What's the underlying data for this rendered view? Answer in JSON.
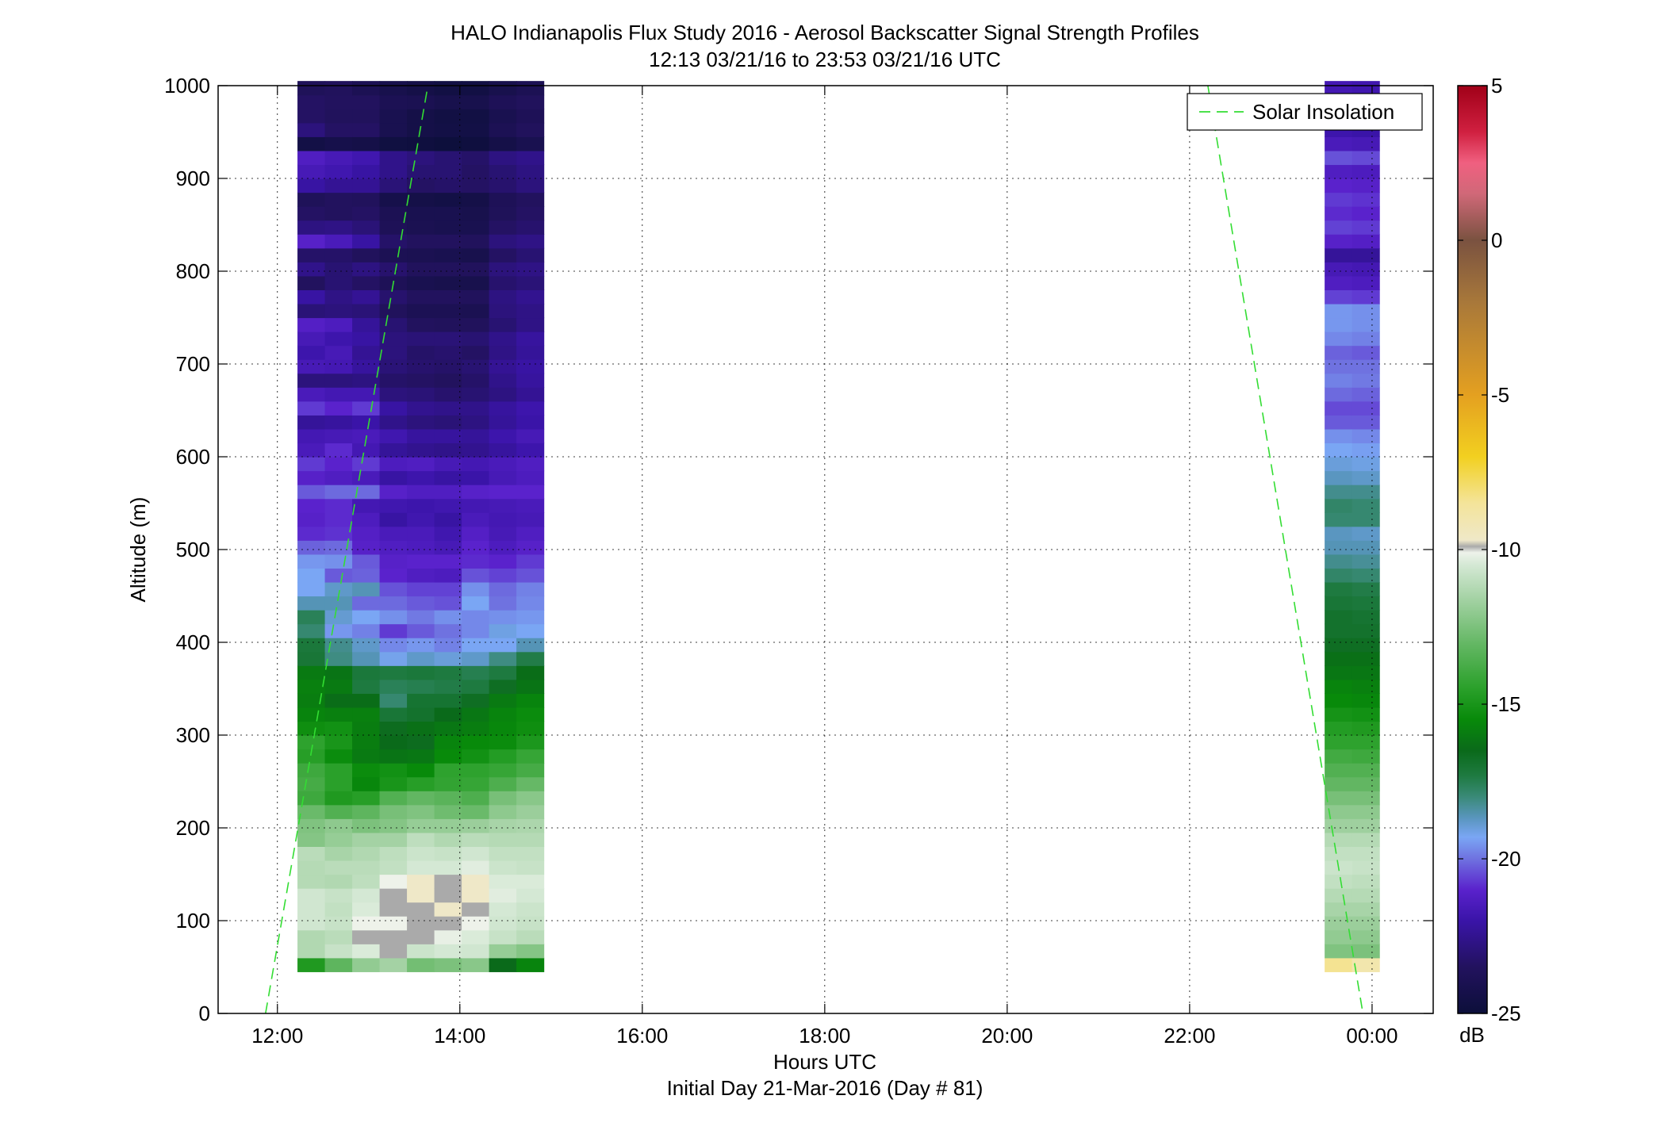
{
  "chart_data": {
    "type": "heatmap",
    "title": "HALO Indianapolis Flux Study 2016 - Aerosol Backscatter Signal Strength Profiles",
    "subtitle": "12:13 03/21/16 to 23:53 03/21/16  UTC",
    "xlabel": "Hours UTC",
    "xlabel2": "Initial Day 21-Mar-2016 (Day # 81)",
    "ylabel": "Altitude (m)",
    "xlim": [
      11.35,
      24.67
    ],
    "ylim": [
      0,
      1000
    ],
    "x_ticks": [
      {
        "value": 12,
        "label": "12:00"
      },
      {
        "value": 14,
        "label": "14:00"
      },
      {
        "value": 16,
        "label": "16:00"
      },
      {
        "value": 18,
        "label": "18:00"
      },
      {
        "value": 20,
        "label": "20:00"
      },
      {
        "value": 22,
        "label": "22:00"
      },
      {
        "value": 24,
        "label": "00:00"
      }
    ],
    "y_ticks": [
      {
        "value": 0,
        "label": "0"
      },
      {
        "value": 100,
        "label": "100"
      },
      {
        "value": 200,
        "label": "200"
      },
      {
        "value": 300,
        "label": "300"
      },
      {
        "value": 400,
        "label": "400"
      },
      {
        "value": 500,
        "label": "500"
      },
      {
        "value": 600,
        "label": "600"
      },
      {
        "value": 700,
        "label": "700"
      },
      {
        "value": 800,
        "label": "800"
      },
      {
        "value": 900,
        "label": "900"
      },
      {
        "value": 1000,
        "label": "1000"
      }
    ],
    "grid": true,
    "legend": {
      "position": "top-right",
      "entries": [
        {
          "label": "Solar Insolation",
          "color": "#33dd33",
          "style": "dashed"
        }
      ]
    },
    "colorbar": {
      "label": "dB",
      "range": [
        -25,
        5
      ],
      "ticks": [
        {
          "value": 5,
          "label": "5"
        },
        {
          "value": 0,
          "label": "0"
        },
        {
          "value": -5,
          "label": "-5"
        },
        {
          "value": -10,
          "label": "-10"
        },
        {
          "value": -15,
          "label": "-15"
        },
        {
          "value": -20,
          "label": "-20"
        },
        {
          "value": -25,
          "label": "-25"
        }
      ],
      "stops": [
        {
          "value": -25,
          "color": "#0c0f3a"
        },
        {
          "value": -23.5,
          "color": "#22125e"
        },
        {
          "value": -22,
          "color": "#3a14a8"
        },
        {
          "value": -21,
          "color": "#5a22cc"
        },
        {
          "value": -20,
          "color": "#6f72e0"
        },
        {
          "value": -19.3,
          "color": "#7aa6f4"
        },
        {
          "value": -18.7,
          "color": "#5a96c0"
        },
        {
          "value": -18,
          "color": "#3a8a78"
        },
        {
          "value": -17.3,
          "color": "#1e7a40"
        },
        {
          "value": -16.5,
          "color": "#0a6a1a"
        },
        {
          "value": -15.5,
          "color": "#088a0a"
        },
        {
          "value": -14.5,
          "color": "#2aa02a"
        },
        {
          "value": -13,
          "color": "#66b866"
        },
        {
          "value": -11.5,
          "color": "#a8d4a8"
        },
        {
          "value": -10.5,
          "color": "#d4e8d4"
        },
        {
          "value": -10.1,
          "color": "#eef2ea"
        },
        {
          "value": -9.9,
          "color": "#aaaaaa"
        },
        {
          "value": -9.7,
          "color": "#efe8c8"
        },
        {
          "value": -8.5,
          "color": "#f4e49a"
        },
        {
          "value": -7,
          "color": "#f2d020"
        },
        {
          "value": -5,
          "color": "#e4a020"
        },
        {
          "value": -2,
          "color": "#a8783a"
        },
        {
          "value": 0,
          "color": "#7a5240"
        },
        {
          "value": 1.5,
          "color": "#d06878"
        },
        {
          "value": 2.5,
          "color": "#f06080"
        },
        {
          "value": 3.5,
          "color": "#d02040"
        },
        {
          "value": 5,
          "color": "#a00018"
        }
      ]
    },
    "altitude_bins_m": [
      45,
      60,
      75,
      90,
      105,
      120,
      135,
      150,
      165,
      180,
      195,
      210,
      225,
      240,
      255,
      270,
      285,
      300,
      315,
      330,
      345,
      360,
      375,
      390,
      405,
      420,
      435,
      450,
      465,
      480,
      495,
      510,
      525,
      540,
      555,
      570,
      585,
      600,
      615,
      630,
      645,
      660,
      675,
      690,
      705,
      720,
      735,
      750,
      765,
      780,
      795,
      810,
      825,
      840,
      855,
      870,
      885,
      900,
      915,
      930,
      945,
      960,
      975,
      990
    ],
    "profiles": [
      {
        "time": 12.22,
        "db": [
          -14.8,
          -11.3,
          -11.3,
          -10.6,
          -10.6,
          -10.6,
          -11.2,
          -11.2,
          -11.1,
          -12.3,
          -12.4,
          -12.9,
          -14.0,
          -13.8,
          -14.0,
          -14.6,
          -14.4,
          -15.3,
          -15.7,
          -15.9,
          -15.8,
          -16.0,
          -17.1,
          -17.2,
          -17.9,
          -17.6,
          -18.6,
          -19.3,
          -19.3,
          -19.5,
          -20.2,
          -20.9,
          -21.1,
          -21.0,
          -20.3,
          -21.1,
          -20.7,
          -21.5,
          -21.7,
          -22.3,
          -20.7,
          -21.5,
          -22.9,
          -21.6,
          -21.9,
          -21.6,
          -21.2,
          -23.0,
          -22.1,
          -23.5,
          -22.6,
          -23.3,
          -21.1,
          -22.8,
          -23.4,
          -23.7,
          -22.1,
          -21.6,
          -21.3,
          -24.5,
          -22.9,
          -23.4,
          -23.4,
          -23.7
        ]
      },
      {
        "time": 12.52,
        "db": [
          -13.2,
          -10.8,
          -11.1,
          -10.8,
          -10.9,
          -10.8,
          -11.3,
          -11.1,
          -11.5,
          -11.9,
          -12.1,
          -13.5,
          -14.8,
          -14.5,
          -14.5,
          -15.4,
          -15.0,
          -15.2,
          -15.8,
          -16.4,
          -16.0,
          -16.2,
          -18.1,
          -18.2,
          -19.5,
          -18.9,
          -18.6,
          -18.8,
          -20.3,
          -19.6,
          -20.1,
          -20.8,
          -20.9,
          -20.9,
          -20.1,
          -21.3,
          -21.0,
          -20.9,
          -21.6,
          -22.2,
          -21.0,
          -21.7,
          -22.9,
          -21.7,
          -21.6,
          -21.9,
          -21.4,
          -22.9,
          -22.7,
          -23.1,
          -23.1,
          -23.3,
          -21.5,
          -22.7,
          -23.5,
          -23.5,
          -22.4,
          -21.8,
          -21.6,
          -24.3,
          -23.4,
          -23.6,
          -23.5,
          -23.6
        ]
      },
      {
        "time": 12.82,
        "db": [
          -12.0,
          -10.4,
          -9.9,
          -10.1,
          -10.4,
          -10.5,
          -11.0,
          -11.1,
          -11.3,
          -11.6,
          -12.5,
          -13.2,
          -14.6,
          -15.6,
          -15.4,
          -16.0,
          -15.9,
          -15.9,
          -15.8,
          -16.4,
          -17.3,
          -17.2,
          -18.6,
          -18.8,
          -19.8,
          -19.3,
          -20.1,
          -18.6,
          -20.2,
          -20.3,
          -21.1,
          -21.2,
          -21.4,
          -21.7,
          -20.1,
          -21.5,
          -20.7,
          -21.7,
          -21.5,
          -22.0,
          -20.7,
          -21.7,
          -22.8,
          -22.2,
          -22.4,
          -22.1,
          -22.3,
          -23.0,
          -22.4,
          -23.4,
          -22.8,
          -23.6,
          -22.1,
          -23.0,
          -23.4,
          -23.6,
          -22.4,
          -22.1,
          -21.8,
          -24.4,
          -23.4,
          -23.6,
          -23.5,
          -23.9
        ]
      },
      {
        "time": 13.12,
        "db": [
          -11.6,
          -9.9,
          -9.9,
          -10.1,
          -9.9,
          -9.9,
          -10.1,
          -10.9,
          -11.0,
          -11.6,
          -12.3,
          -12.6,
          -13.5,
          -15.0,
          -15.2,
          -16.2,
          -16.5,
          -16.6,
          -17.1,
          -17.9,
          -17.6,
          -17.3,
          -19.2,
          -19.7,
          -20.7,
          -19.6,
          -20.1,
          -20.4,
          -21.0,
          -21.1,
          -21.3,
          -21.5,
          -22.1,
          -21.8,
          -21.1,
          -22.1,
          -21.4,
          -22.3,
          -21.8,
          -22.6,
          -22.1,
          -22.9,
          -23.3,
          -23.0,
          -22.9,
          -22.9,
          -23.1,
          -23.6,
          -23.2,
          -23.8,
          -23.2,
          -23.9,
          -23.3,
          -23.8,
          -23.9,
          -24.3,
          -23.0,
          -22.6,
          -22.6,
          -24.7,
          -24.1,
          -24.1,
          -23.9,
          -24.2
        ]
      },
      {
        "time": 13.42,
        "db": [
          -12.7,
          -10.7,
          -9.9,
          -9.9,
          -9.9,
          -9.7,
          -9.7,
          -10.5,
          -10.7,
          -11.0,
          -11.9,
          -12.4,
          -13.1,
          -14.6,
          -15.5,
          -16.1,
          -16.6,
          -16.3,
          -16.9,
          -17.0,
          -17.5,
          -17.2,
          -18.8,
          -19.5,
          -20.3,
          -19.9,
          -20.3,
          -20.6,
          -21.3,
          -21.0,
          -21.4,
          -21.5,
          -21.8,
          -21.9,
          -21.3,
          -21.9,
          -21.3,
          -22.5,
          -22.2,
          -22.9,
          -22.5,
          -23.0,
          -23.4,
          -23.2,
          -23.3,
          -23.0,
          -23.5,
          -23.9,
          -23.5,
          -24.1,
          -23.6,
          -24.0,
          -23.5,
          -24.0,
          -24.1,
          -24.4,
          -23.4,
          -23.1,
          -22.9,
          -24.8,
          -24.4,
          -24.4,
          -24.0,
          -24.4
        ]
      },
      {
        "time": 13.72,
        "db": [
          -12.5,
          -10.5,
          -10.2,
          -9.9,
          -9.7,
          -9.9,
          -9.9,
          -10.5,
          -10.8,
          -11.3,
          -11.9,
          -12.8,
          -13.3,
          -14.3,
          -14.4,
          -15.5,
          -15.7,
          -16.1,
          -16.5,
          -17.0,
          -17.4,
          -17.3,
          -19.0,
          -19.8,
          -20.0,
          -19.6,
          -20.4,
          -20.6,
          -21.4,
          -21.0,
          -21.6,
          -21.8,
          -22.1,
          -21.8,
          -21.3,
          -22.1,
          -21.6,
          -22.6,
          -22.2,
          -23.0,
          -22.6,
          -23.2,
          -23.5,
          -23.3,
          -23.2,
          -23.0,
          -23.6,
          -23.9,
          -23.5,
          -24.2,
          -23.6,
          -24.1,
          -23.5,
          -24.1,
          -24.1,
          -24.5,
          -23.3,
          -23.1,
          -23.1,
          -24.9,
          -24.5,
          -24.6,
          -24.2,
          -24.6
        ]
      },
      {
        "time": 14.02,
        "db": [
          -12.2,
          -10.6,
          -10.4,
          -10.1,
          -9.9,
          -9.7,
          -9.7,
          -10.3,
          -10.6,
          -11.1,
          -11.8,
          -12.9,
          -13.6,
          -14.2,
          -14.4,
          -15.2,
          -15.5,
          -15.9,
          -16.1,
          -16.7,
          -17.3,
          -17.5,
          -18.8,
          -19.3,
          -19.7,
          -19.7,
          -19.3,
          -19.6,
          -20.4,
          -20.9,
          -21.0,
          -21.2,
          -21.5,
          -21.7,
          -21.1,
          -22.0,
          -21.7,
          -22.5,
          -22.3,
          -22.8,
          -22.6,
          -23.1,
          -23.3,
          -23.1,
          -23.4,
          -23.1,
          -23.6,
          -24.0,
          -23.6,
          -24.2,
          -23.6,
          -24.2,
          -23.6,
          -24.1,
          -24.2,
          -24.4,
          -23.4,
          -23.4,
          -23.3,
          -24.8,
          -24.5,
          -24.6,
          -24.2,
          -24.6
        ]
      },
      {
        "time": 14.32,
        "db": [
          -16.5,
          -11.9,
          -10.8,
          -10.6,
          -10.5,
          -10.3,
          -10.4,
          -10.7,
          -10.9,
          -11.2,
          -11.5,
          -12.1,
          -12.6,
          -13.6,
          -14.2,
          -14.7,
          -15.4,
          -15.6,
          -15.7,
          -16.0,
          -16.7,
          -17.3,
          -18.1,
          -19.3,
          -19.1,
          -19.6,
          -20.0,
          -20.1,
          -20.6,
          -21.0,
          -21.4,
          -21.6,
          -21.7,
          -21.6,
          -21.0,
          -21.6,
          -21.5,
          -22.2,
          -21.9,
          -22.3,
          -22.2,
          -22.8,
          -22.6,
          -22.4,
          -22.7,
          -22.6,
          -23.1,
          -22.9,
          -22.8,
          -23.2,
          -22.9,
          -23.4,
          -22.9,
          -23.4,
          -23.7,
          -23.8,
          -23.2,
          -23.1,
          -22.8,
          -24.4,
          -23.9,
          -24.1,
          -23.8,
          -24.2
        ]
      },
      {
        "time": 14.62,
        "db": [
          -15.7,
          -12.3,
          -11.1,
          -10.8,
          -10.7,
          -10.5,
          -10.4,
          -10.8,
          -10.9,
          -11.2,
          -11.4,
          -11.8,
          -12.2,
          -13.0,
          -13.8,
          -14.2,
          -14.9,
          -15.3,
          -15.4,
          -15.7,
          -16.2,
          -16.4,
          -17.4,
          -18.6,
          -19.3,
          -19.5,
          -19.7,
          -19.8,
          -20.4,
          -20.7,
          -21.1,
          -21.3,
          -21.6,
          -21.5,
          -21.0,
          -21.4,
          -21.3,
          -21.9,
          -21.6,
          -22.0,
          -21.9,
          -22.4,
          -22.2,
          -22.1,
          -22.3,
          -22.2,
          -22.7,
          -22.7,
          -22.5,
          -23.0,
          -22.7,
          -23.1,
          -22.7,
          -23.2,
          -23.4,
          -23.5,
          -22.9,
          -22.8,
          -22.6,
          -24.1,
          -23.6,
          -23.8,
          -23.6,
          -23.9
        ]
      },
      {
        "time": 23.48,
        "db": [
          -8.4,
          -12.4,
          -12.0,
          -11.8,
          -11.5,
          -11.2,
          -10.9,
          -10.7,
          -10.9,
          -11.2,
          -11.7,
          -12.1,
          -12.6,
          -13.1,
          -13.5,
          -13.9,
          -14.4,
          -14.7,
          -15.1,
          -15.5,
          -15.7,
          -16.1,
          -16.3,
          -16.7,
          -16.9,
          -16.9,
          -17.1,
          -17.3,
          -17.8,
          -18.2,
          -18.6,
          -18.7,
          -17.9,
          -17.8,
          -18.2,
          -18.7,
          -19.0,
          -19.3,
          -19.6,
          -20.3,
          -20.5,
          -20.1,
          -19.8,
          -20.0,
          -20.2,
          -19.7,
          -19.5,
          -19.5,
          -20.6,
          -21.3,
          -21.6,
          -22.3,
          -21.1,
          -20.6,
          -20.9,
          -20.7,
          -21.0,
          -21.3,
          -20.4,
          -21.5,
          -21.9,
          -21.8,
          -21.6,
          -21.7
        ]
      },
      {
        "time": 23.78,
        "db": [
          -9.0,
          -12.5,
          -12.1,
          -11.8,
          -11.5,
          -11.2,
          -11.0,
          -10.8,
          -10.9,
          -11.2,
          -11.7,
          -12.1,
          -12.6,
          -13.1,
          -13.5,
          -14.0,
          -14.4,
          -14.8,
          -15.2,
          -15.6,
          -15.8,
          -16.1,
          -16.3,
          -16.7,
          -16.9,
          -17.0,
          -17.2,
          -17.4,
          -17.9,
          -18.3,
          -18.6,
          -18.8,
          -17.9,
          -17.9,
          -18.2,
          -18.8,
          -19.1,
          -19.4,
          -19.7,
          -20.3,
          -20.5,
          -20.2,
          -19.9,
          -20.0,
          -20.3,
          -19.8,
          -19.6,
          -19.6,
          -20.7,
          -21.4,
          -21.7,
          -22.3,
          -21.2,
          -20.7,
          -21.0,
          -20.8,
          -21.1,
          -21.4,
          -20.5,
          -21.6,
          -22.0,
          -21.9,
          -21.7,
          -21.8
        ]
      }
    ],
    "profile_width_hours": 0.3,
    "bin_height_m": 15,
    "solar_insolation": [
      {
        "points": [
          [
            11.87,
            0
          ],
          [
            13.65,
            1000
          ]
        ]
      },
      {
        "points": [
          [
            22.2,
            1000
          ],
          [
            23.9,
            0
          ]
        ]
      }
    ]
  }
}
